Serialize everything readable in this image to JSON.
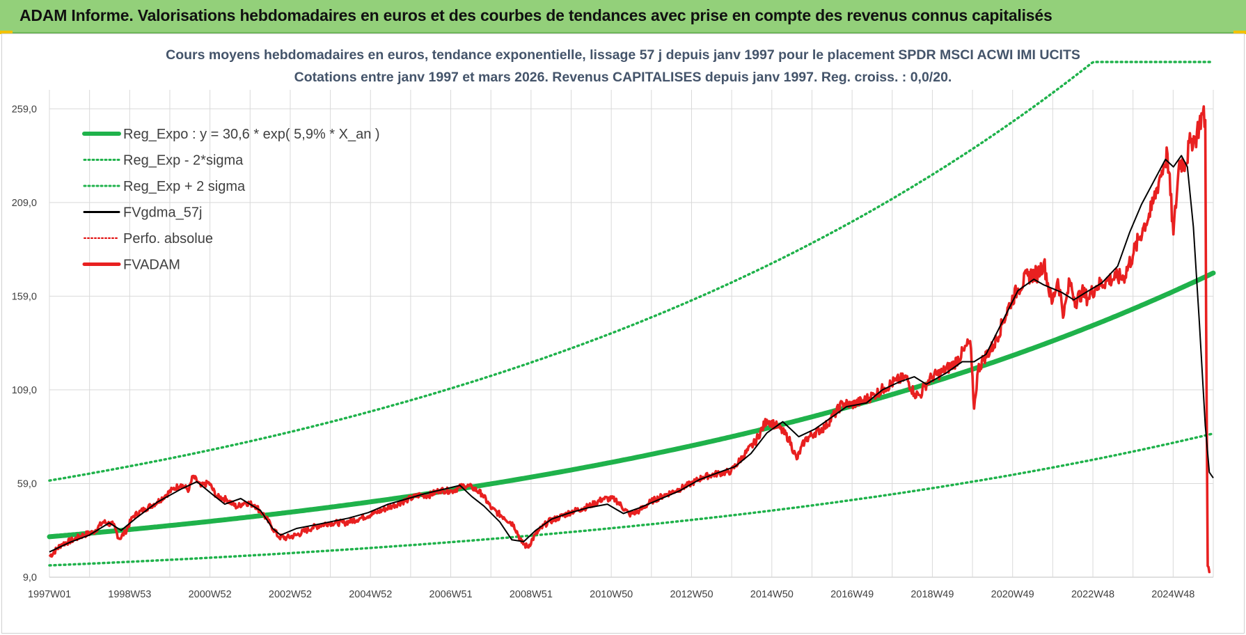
{
  "header": {
    "title": "ADAM Informe. Valorisations hebdomadaires en euros et des courbes de tendances avec prise en compte des revenus connus capitalisés"
  },
  "colors": {
    "banner": "#93d07a",
    "regexpo": "#1fb24b",
    "sigma": "#1fb24b",
    "moving_avg": "#000000",
    "perfo": "#e00000",
    "fvadam": "#e82020",
    "grid": "#d9d9d9"
  },
  "chart_data": {
    "type": "line",
    "title": "Cours moyens hebdomadaires en euros, tendance exponentielle, lissage 57 j depuis janv 1997 pour le placement SPDR MSCI ACWI IMI UCITS",
    "subtitle": "Cotations entre janv 1997 et mars 2026. Revenus CAPITALISES depuis janv 1997. Reg. croiss. : 0,0/20.",
    "xlabel": "",
    "ylabel": "",
    "ylim": [
      9,
      284
    ],
    "y_ticks": [
      "9,0",
      "59,0",
      "109,0",
      "159,0",
      "209,0",
      "259,0"
    ],
    "x_ticks": [
      "1997W01",
      "1998W53",
      "2000W52",
      "2002W52",
      "2004W52",
      "2006W51",
      "2008W51",
      "2010W50",
      "2012W50",
      "2014W50",
      "2016W49",
      "2018W49",
      "2020W49",
      "2022W48",
      "2024W48"
    ],
    "grid": true,
    "legend_position": "top-left",
    "regression": {
      "a": 30.6,
      "growth_pct": 5.9,
      "sigma_factor_lower": 0.5,
      "sigma_factor_upper": 1.98,
      "upper_cap": 284
    },
    "series": [
      {
        "name": "Reg_Expo : y = 30,6 * exp( 5,9% *  X_an )",
        "style": "thick-solid",
        "color": "#1fb24b"
      },
      {
        "name": "Reg_Exp - 2*sigma",
        "style": "dotted",
        "color": "#1fb24b"
      },
      {
        "name": "Reg_Exp + 2 sigma",
        "style": "dotted",
        "color": "#1fb24b"
      },
      {
        "name": "FVgdma_57j",
        "style": "solid",
        "color": "#000000",
        "x": [
          1997.0,
          1997.5,
          1998.0,
          1998.5,
          1998.8,
          1999.2,
          1999.7,
          2000.3,
          2000.7,
          2001.1,
          2001.4,
          2001.8,
          2002.3,
          2002.6,
          2002.8,
          2003.2,
          2003.8,
          2004.5,
          2005.0,
          2005.5,
          2006.0,
          2006.4,
          2006.8,
          2007.3,
          2007.6,
          2007.9,
          2008.3,
          2008.6,
          2008.9,
          2009.2,
          2009.6,
          2010.0,
          2010.5,
          2011.0,
          2011.4,
          2011.8,
          2012.3,
          2012.8,
          2013.3,
          2013.8,
          2014.2,
          2014.6,
          2015.0,
          2015.4,
          2015.8,
          2016.2,
          2016.6,
          2017.0,
          2017.5,
          2017.9,
          2018.3,
          2018.7,
          2019.0,
          2019.5,
          2019.9,
          2020.2,
          2020.5,
          2020.9,
          2021.3,
          2021.7,
          2021.95,
          2022.4,
          2022.7,
          2023.0,
          2023.4,
          2023.8,
          2024.1,
          2024.4,
          2024.7,
          2025.0,
          2025.2,
          2025.4,
          2025.55,
          2025.7,
          2025.85,
          2026.0,
          2026.1,
          2026.2
        ],
        "values": [
          22.5,
          27.5,
          31.5,
          38.0,
          34.0,
          41.0,
          49.0,
          56.0,
          60.0,
          53.0,
          48.0,
          51.0,
          44.5,
          35.0,
          31.5,
          35.0,
          37.5,
          40.5,
          43.5,
          48.0,
          51.0,
          53.5,
          55.5,
          58.0,
          52.0,
          47.0,
          38.5,
          29.0,
          28.0,
          34.0,
          40.0,
          43.0,
          46.0,
          48.0,
          43.0,
          46.0,
          50.5,
          55.0,
          61.0,
          65.0,
          68.0,
          75.0,
          86.0,
          92.0,
          84.0,
          88.0,
          94.0,
          100.0,
          102.0,
          109.0,
          113.0,
          116.0,
          112.0,
          118.0,
          124.0,
          124.0,
          128.0,
          145.0,
          162.0,
          168.0,
          165.0,
          161.0,
          157.0,
          161.0,
          166.0,
          175.0,
          193.0,
          208.0,
          220.0,
          232.0,
          228.0,
          234.0,
          228.0,
          196.0,
          145.0,
          90.0,
          65.0,
          62.0
        ]
      },
      {
        "name": "Perfo. absolue",
        "style": "dotted",
        "color": "#e00000"
      },
      {
        "name": "FVADAM",
        "style": "thick-solid",
        "color": "#e82020",
        "x": [
          1997.0,
          1997.3,
          1997.6,
          1997.85,
          1998.1,
          1998.35,
          1998.6,
          1998.75,
          1998.9,
          1999.1,
          1999.4,
          1999.7,
          1999.9,
          2000.1,
          2000.3,
          2000.5,
          2000.6,
          2000.8,
          2001.0,
          2001.2,
          2001.45,
          2001.7,
          2001.9,
          2002.15,
          2002.35,
          2002.55,
          2002.75,
          2002.95,
          2003.2,
          2003.6,
          2004.0,
          2004.4,
          2004.8,
          2005.2,
          2005.6,
          2006.0,
          2006.3,
          2006.5,
          2006.8,
          2007.1,
          2007.4,
          2007.6,
          2007.85,
          2008.1,
          2008.4,
          2008.65,
          2008.85,
          2009.0,
          2009.2,
          2009.5,
          2009.8,
          2010.1,
          2010.35,
          2010.6,
          2010.9,
          2011.2,
          2011.55,
          2011.8,
          2012.1,
          2012.45,
          2012.8,
          2013.1,
          2013.4,
          2013.8,
          2014.1,
          2014.4,
          2014.7,
          2015.0,
          2015.3,
          2015.55,
          2015.75,
          2015.95,
          2016.2,
          2016.45,
          2016.7,
          2016.9,
          2017.1,
          2017.4,
          2017.7,
          2017.95,
          2018.25,
          2018.5,
          2018.7,
          2018.85,
          2018.95,
          2019.15,
          2019.4,
          2019.7,
          2019.95,
          2020.1,
          2020.2,
          2020.3,
          2020.45,
          2020.7,
          2020.9,
          2021.1,
          2021.3,
          2021.55,
          2021.8,
          2021.95,
          2022.15,
          2022.3,
          2022.45,
          2022.6,
          2022.75,
          2022.9,
          2023.05,
          2023.25,
          2023.5,
          2023.75,
          2023.95,
          2024.2,
          2024.45,
          2024.65,
          2024.85,
          2024.95,
          2025.05,
          2025.2,
          2025.35,
          2025.5,
          2025.65,
          2025.75,
          2025.85,
          2025.92,
          2026.0,
          2026.02,
          2026.06,
          2026.12
        ],
        "values": [
          20.0,
          26.5,
          29.0,
          31.5,
          33.0,
          38.5,
          37.0,
          29.5,
          33.0,
          41.5,
          45.5,
          49.0,
          52.5,
          56.0,
          58.5,
          55.5,
          63.0,
          57.5,
          59.5,
          52.0,
          50.5,
          46.5,
          49.0,
          47.5,
          43.0,
          37.0,
          30.5,
          30.0,
          31.5,
          35.5,
          38.0,
          38.0,
          40.5,
          43.5,
          47.0,
          50.5,
          53.0,
          52.5,
          55.5,
          55.0,
          58.0,
          57.0,
          53.5,
          45.5,
          41.0,
          37.0,
          27.5,
          25.0,
          32.0,
          38.5,
          41.0,
          44.0,
          45.5,
          47.5,
          51.0,
          50.5,
          42.5,
          44.5,
          49.5,
          53.0,
          56.0,
          59.0,
          62.5,
          64.5,
          65.5,
          73.5,
          81.0,
          93.0,
          89.0,
          83.0,
          72.0,
          82.0,
          86.0,
          89.0,
          96.0,
          102.0,
          101.0,
          103.0,
          106.5,
          110.0,
          114.0,
          115.5,
          107.0,
          106.0,
          111.0,
          116.0,
          118.5,
          123.0,
          130.0,
          135.0,
          99.0,
          120.0,
          126.0,
          133.0,
          144.0,
          155.0,
          163.0,
          170.0,
          171.0,
          177.0,
          155.0,
          168.0,
          149.0,
          167.0,
          156.0,
          161.0,
          158.0,
          164.0,
          167.0,
          169.0,
          169.0,
          182.0,
          196.0,
          205.0,
          222.0,
          228.0,
          235.0,
          192.0,
          231.0,
          230.0,
          243.0,
          243.0,
          251.0,
          256.0,
          253.0,
          148.0,
          15.0,
          12.0
        ]
      }
    ]
  }
}
